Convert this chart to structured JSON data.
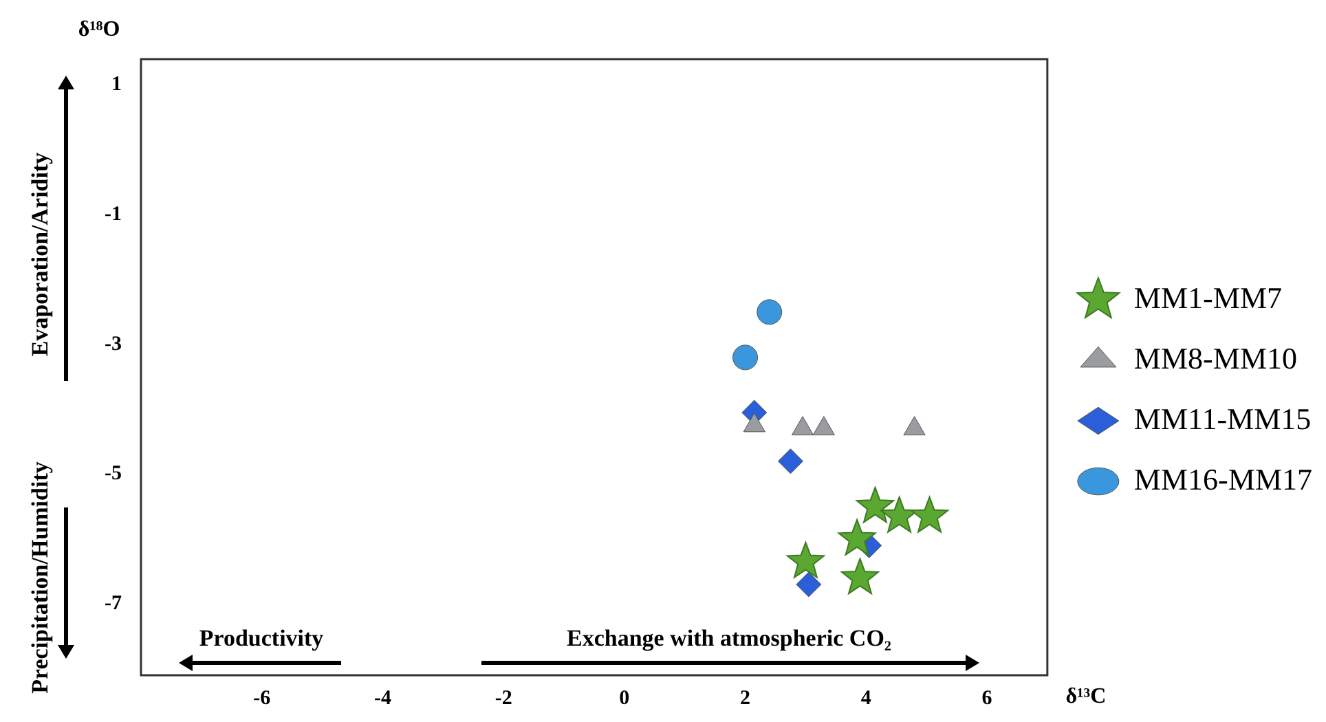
{
  "chart_data": {
    "type": "scatter",
    "xlabel": "δ¹³C",
    "ylabel": "δ¹⁸O",
    "xlim": [
      -8,
      7
    ],
    "ylim": [
      -8.1,
      1.4
    ],
    "xticks": [
      -6,
      -4,
      -2,
      0,
      2,
      4,
      6
    ],
    "yticks": [
      1,
      -1,
      -3,
      -5,
      -7
    ],
    "grid": false,
    "legend": "right",
    "annotations": [
      "Evaporation/Aridity",
      "Precipitation/Humidity",
      "Productivity",
      "Exchange with atmospheric CO₂"
    ],
    "series": [
      {
        "name": "MM1-MM7",
        "color": "#5aa832",
        "marker": "star",
        "x": [
          4.15,
          4.55,
          5.05,
          3.85,
          3.0,
          3.9
        ],
        "values": [
          -5.5,
          -5.65,
          -5.65,
          -6.0,
          -6.35,
          -6.6
        ]
      },
      {
        "name": "MM8-MM10",
        "color": "#9a9ca0",
        "marker": "triangle",
        "x": [
          2.15,
          2.95,
          3.3,
          4.8
        ],
        "values": [
          -4.25,
          -4.3,
          -4.3,
          -4.3
        ]
      },
      {
        "name": "MM11-MM15",
        "color": "#2b5fd9",
        "marker": "diamond",
        "x": [
          2.15,
          2.75,
          4.05,
          3.05
        ],
        "values": [
          -4.05,
          -4.8,
          -6.1,
          -6.7
        ]
      },
      {
        "name": "MM16-MM17",
        "color": "#3a97de",
        "marker": "circle",
        "x": [
          2.4,
          2.0
        ],
        "values": [
          -2.5,
          -3.2
        ]
      }
    ]
  }
}
